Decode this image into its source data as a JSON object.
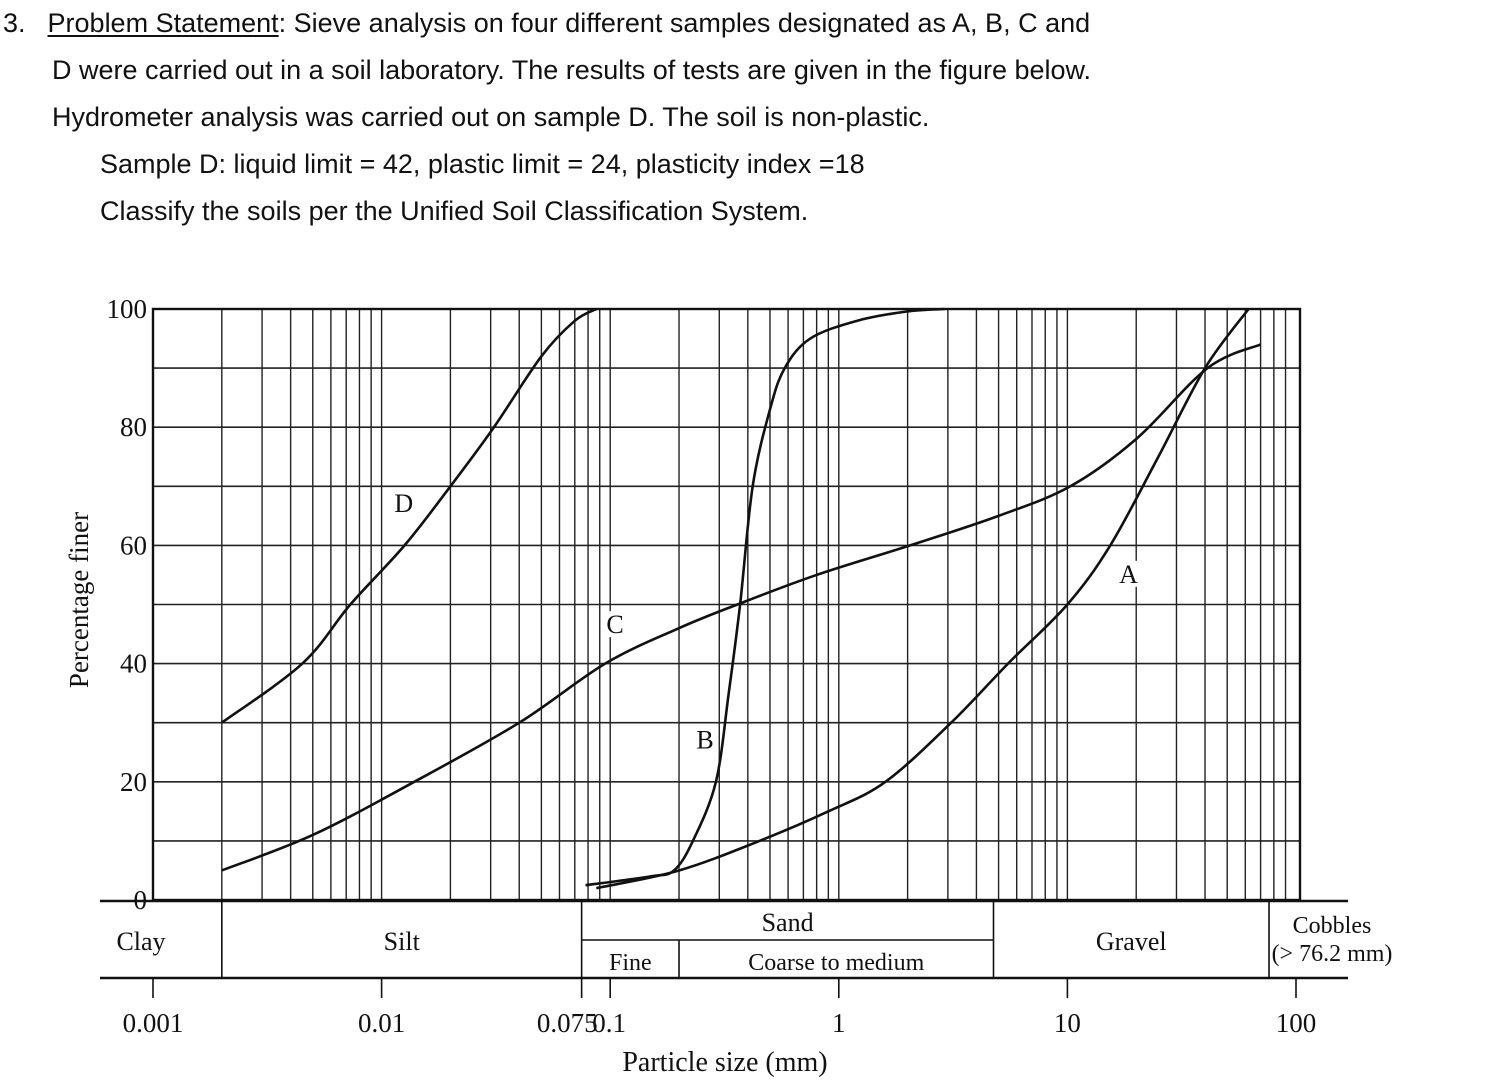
{
  "problem": {
    "number": "3.",
    "heading": "Problem Statement",
    "line1_rest": ":  Sieve analysis on four different samples designated as A, B, C and",
    "line2": "D were carried out in a soil laboratory. The results of tests are given in the figure below.",
    "line3": "Hydrometer analysis was carried out on sample D. The soil is non-plastic.",
    "line4": "Sample D: liquid limit = 42, plastic limit = 24, plasticity index =18",
    "line5": "Classify the soils per the Unified Soil Classification System."
  },
  "chart_data": {
    "type": "line",
    "title": "",
    "xlabel": "Particle size (mm)",
    "ylabel": "Percentage finer",
    "xscale": "log",
    "xlim": [
      0.001,
      100
    ],
    "ylim": [
      0,
      100
    ],
    "grid": true,
    "y_ticks": [
      0,
      20,
      40,
      60,
      80,
      100
    ],
    "x_tick_labels": [
      {
        "value": 0.001,
        "label": "0.001"
      },
      {
        "value": 0.01,
        "label": "0.01"
      },
      {
        "value": 0.075,
        "label": "0.075"
      },
      {
        "value": 0.1,
        "label": "0.1"
      },
      {
        "value": 1,
        "label": "1"
      },
      {
        "value": 10,
        "label": "10"
      },
      {
        "value": 100,
        "label": "100"
      }
    ],
    "series": [
      {
        "name": "A",
        "label_at": [
          18.5,
          54
        ],
        "x": [
          0.087,
          0.2,
          0.45,
          0.9,
          1.6,
          3.1,
          5.5,
          10,
          15.4,
          25,
          40,
          62
        ],
        "y": [
          2,
          5,
          10,
          15,
          20,
          30,
          40,
          50,
          60,
          75,
          90,
          100
        ]
      },
      {
        "name": "B",
        "label_at": [
          0.26,
          26
        ],
        "x": [
          0.078,
          0.15,
          0.19,
          0.23,
          0.29,
          0.33,
          0.37,
          0.42,
          0.5,
          0.58,
          0.75,
          1.2,
          2.0,
          2.9
        ],
        "y": [
          2.5,
          4,
          5,
          10,
          20,
          35,
          50,
          70,
          83,
          90,
          95,
          98,
          99.6,
          100
        ]
      },
      {
        "name": "C",
        "label_at": [
          0.105,
          45.5
        ],
        "x": [
          0.002,
          0.005,
          0.0139,
          0.04,
          0.095,
          0.2,
          0.36,
          0.8,
          2.05,
          5,
          10.3,
          20,
          41,
          70
        ],
        "y": [
          5,
          11,
          20,
          30,
          40,
          46,
          50,
          55,
          60,
          65,
          70,
          78,
          90,
          94
        ]
      },
      {
        "name": "D",
        "label_at": [
          0.0125,
          66
        ],
        "x": [
          0.002,
          0.0045,
          0.0073,
          0.0126,
          0.02,
          0.031,
          0.05,
          0.07,
          0.087
        ],
        "y": [
          30,
          40,
          50,
          60,
          70,
          80,
          92,
          98,
          100
        ]
      }
    ],
    "soil_bands": {
      "top_row": [
        {
          "label": "Clay",
          "from": 0.00055,
          "to": 0.002
        },
        {
          "label": "Silt",
          "from": 0.002,
          "to": 0.075
        },
        {
          "label": "Sand",
          "from": 0.075,
          "to": 4.75
        },
        {
          "label": "Gravel",
          "from": 4.75,
          "to": 76.2
        },
        {
          "label": "Cobbles",
          "sublabel": "(> 76.2 mm)",
          "from": 76.2,
          "to": 250
        }
      ],
      "sand_sub": [
        {
          "label": "Fine",
          "from": 0.075,
          "to": 0.2
        },
        {
          "label": "Coarse to medium",
          "from": 0.2,
          "to": 4.75
        }
      ]
    }
  }
}
